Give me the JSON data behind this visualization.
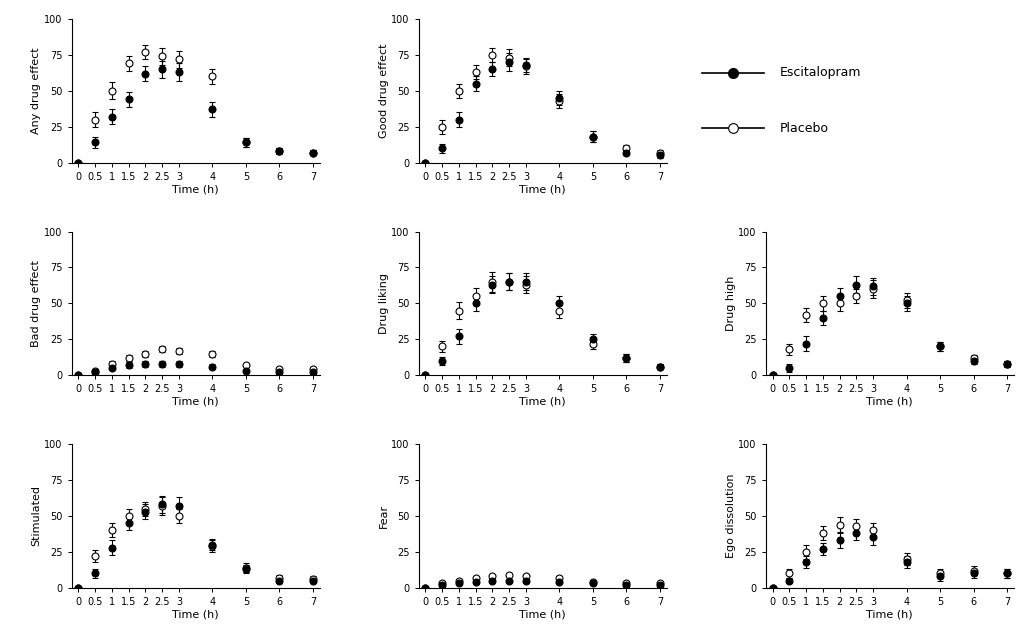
{
  "time": [
    0,
    0.5,
    1,
    1.5,
    2,
    2.5,
    3,
    4,
    5,
    6,
    7
  ],
  "plots": [
    {
      "ylabel": "Any drug effect",
      "escitalopram_mean": [
        0,
        14,
        32,
        44,
        62,
        65,
        63,
        37,
        14,
        8,
        7
      ],
      "escitalopram_err": [
        0,
        4,
        5,
        5,
        5,
        6,
        6,
        5,
        3,
        2,
        2
      ],
      "placebo_mean": [
        0,
        30,
        50,
        69,
        77,
        74,
        72,
        60,
        14,
        8,
        7
      ],
      "placebo_err": [
        0,
        5,
        6,
        5,
        5,
        6,
        6,
        5,
        3,
        2,
        2
      ]
    },
    {
      "ylabel": "Good drug effect",
      "escitalopram_mean": [
        0,
        10,
        30,
        55,
        65,
        70,
        68,
        45,
        18,
        7,
        5
      ],
      "escitalopram_err": [
        0,
        3,
        5,
        5,
        5,
        6,
        5,
        5,
        4,
        2,
        2
      ],
      "placebo_mean": [
        0,
        25,
        50,
        63,
        75,
        73,
        67,
        43,
        18,
        10,
        7
      ],
      "placebo_err": [
        0,
        5,
        5,
        5,
        5,
        6,
        5,
        5,
        4,
        2,
        2
      ]
    },
    {
      "ylabel": "Bad drug effect",
      "escitalopram_mean": [
        0,
        2,
        5,
        7,
        8,
        8,
        8,
        6,
        3,
        2,
        2
      ],
      "escitalopram_err": [
        0,
        1,
        1,
        2,
        2,
        2,
        2,
        2,
        1,
        1,
        1
      ],
      "placebo_mean": [
        0,
        3,
        8,
        12,
        15,
        18,
        17,
        15,
        7,
        4,
        4
      ],
      "placebo_err": [
        0,
        1,
        2,
        2,
        2,
        2,
        2,
        2,
        1,
        1,
        1
      ]
    },
    {
      "ylabel": "Drug liking",
      "escitalopram_mean": [
        0,
        10,
        27,
        50,
        63,
        65,
        65,
        50,
        25,
        12,
        6
      ],
      "escitalopram_err": [
        0,
        3,
        5,
        5,
        6,
        6,
        6,
        5,
        4,
        3,
        2
      ],
      "placebo_mean": [
        0,
        20,
        45,
        55,
        65,
        65,
        63,
        45,
        22,
        12,
        6
      ],
      "placebo_err": [
        0,
        4,
        6,
        6,
        7,
        6,
        6,
        5,
        4,
        3,
        2
      ]
    },
    {
      "ylabel": "Drug high",
      "escitalopram_mean": [
        0,
        5,
        22,
        40,
        55,
        63,
        62,
        50,
        20,
        10,
        8
      ],
      "escitalopram_err": [
        0,
        3,
        5,
        5,
        6,
        6,
        6,
        5,
        3,
        2,
        2
      ],
      "placebo_mean": [
        0,
        18,
        42,
        50,
        50,
        55,
        60,
        52,
        20,
        12,
        8
      ],
      "placebo_err": [
        0,
        4,
        5,
        5,
        5,
        5,
        6,
        5,
        3,
        2,
        2
      ]
    },
    {
      "ylabel": "Stimulated",
      "escitalopram_mean": [
        0,
        10,
        28,
        45,
        53,
        58,
        57,
        30,
        13,
        5,
        5
      ],
      "escitalopram_err": [
        0,
        3,
        5,
        5,
        5,
        6,
        6,
        4,
        3,
        2,
        2
      ],
      "placebo_mean": [
        0,
        22,
        40,
        50,
        55,
        57,
        50,
        29,
        14,
        7,
        6
      ],
      "placebo_err": [
        0,
        4,
        5,
        5,
        5,
        6,
        5,
        4,
        3,
        2,
        2
      ]
    },
    {
      "ylabel": "Fear",
      "escitalopram_mean": [
        0,
        2,
        3,
        4,
        5,
        5,
        5,
        4,
        3,
        2,
        2
      ],
      "escitalopram_err": [
        0,
        1,
        1,
        1,
        1,
        1,
        1,
        1,
        1,
        1,
        1
      ],
      "placebo_mean": [
        0,
        3,
        5,
        7,
        8,
        9,
        8,
        7,
        4,
        3,
        3
      ],
      "placebo_err": [
        0,
        1,
        1,
        1,
        1,
        1,
        1,
        1,
        1,
        1,
        1
      ]
    },
    {
      "ylabel": "Ego dissolution",
      "escitalopram_mean": [
        0,
        5,
        18,
        27,
        33,
        38,
        35,
        18,
        8,
        10,
        10
      ],
      "escitalopram_err": [
        0,
        2,
        4,
        4,
        5,
        5,
        5,
        4,
        3,
        3,
        3
      ],
      "placebo_mean": [
        0,
        10,
        25,
        38,
        44,
        43,
        40,
        20,
        10,
        12,
        10
      ],
      "placebo_err": [
        0,
        3,
        5,
        5,
        5,
        5,
        5,
        4,
        3,
        3,
        3
      ]
    }
  ],
  "xticks": [
    0,
    0.5,
    1,
    1.5,
    2,
    2.5,
    3,
    4,
    5,
    6,
    7
  ],
  "xtick_labels": [
    "0",
    "0.5",
    "1",
    "1.5",
    "2",
    "2.5",
    "3",
    "4",
    "5",
    "6",
    "7"
  ],
  "xlabel": "Time (h)",
  "ylim": [
    0,
    100
  ],
  "yticks": [
    0,
    25,
    50,
    75,
    100
  ],
  "markersize": 5,
  "linewidth": 1.2,
  "legend_escitalopram": "Escitalopram",
  "legend_placebo": "Placebo",
  "background_color": "#ffffff",
  "fontsize_label": 8,
  "fontsize_tick": 7,
  "fontsize_legend": 9
}
